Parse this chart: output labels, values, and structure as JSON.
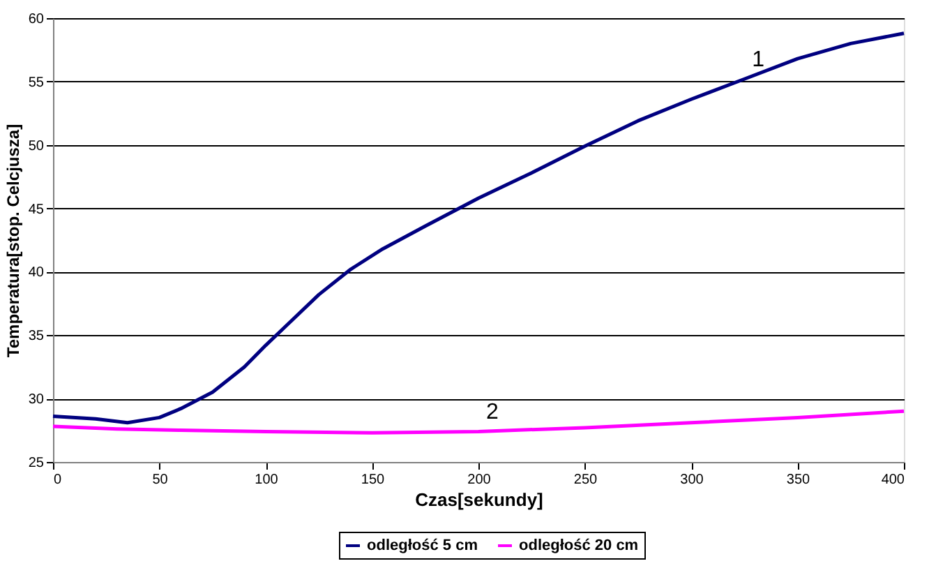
{
  "chart_data": {
    "type": "line",
    "xlabel": "Czas[sekundy]",
    "ylabel": "Temperatura[stop. Celcjusza]",
    "xlim": [
      0,
      400
    ],
    "xticks": [
      0,
      50,
      100,
      150,
      200,
      250,
      300,
      350,
      400
    ],
    "ylim": [
      25,
      60
    ],
    "yticks": [
      25,
      30,
      35,
      40,
      45,
      50,
      55,
      60
    ],
    "grid": "y",
    "legend": "bottom",
    "line_style": "solid",
    "series": [
      {
        "name": "odległość 5 cm",
        "color": "#000080",
        "x": [
          0,
          20,
          35,
          50,
          60,
          75,
          90,
          100,
          110,
          125,
          140,
          155,
          175,
          200,
          225,
          250,
          275,
          300,
          325,
          350,
          375,
          400
        ],
        "values": [
          28.6,
          28.4,
          28.1,
          28.5,
          29.2,
          30.5,
          32.5,
          34.2,
          35.8,
          38.2,
          40.2,
          41.8,
          43.6,
          45.8,
          47.8,
          49.9,
          51.9,
          53.6,
          55.2,
          56.8,
          58.0,
          58.8
        ]
      },
      {
        "name": "odległość 20 cm",
        "color": "#ff00ff",
        "x": [
          0,
          30,
          60,
          100,
          150,
          200,
          250,
          300,
          350,
          400
        ],
        "values": [
          27.8,
          27.6,
          27.5,
          27.4,
          27.3,
          27.4,
          27.7,
          28.1,
          28.5,
          29.0
        ]
      }
    ],
    "annotations": [
      {
        "text": "1",
        "x": 325,
        "y": 55.2
      },
      {
        "text": "2",
        "x": 200,
        "y": 27.4
      }
    ]
  }
}
